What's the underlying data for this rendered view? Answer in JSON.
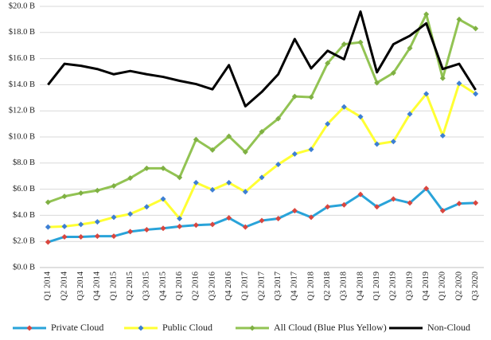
{
  "chart_data": {
    "type": "line",
    "categories": [
      "Q1 2014",
      "Q2 2014",
      "Q3 2014",
      "Q4 2014",
      "Q1 2015",
      "Q2 2015",
      "Q3 2015",
      "Q4 2015",
      "Q1 2016",
      "Q2 2016",
      "Q3 2016",
      "Q4 2016",
      "Q1 2017",
      "Q2 2017",
      "Q3 2017",
      "Q4 2017",
      "Q1 2018",
      "Q2 2018",
      "Q3 2018",
      "Q4 2018",
      "Q1 2019",
      "Q2 2019",
      "Q3 2019",
      "Q4 2019",
      "Q1 2020",
      "Q2 2020",
      "Q3 2020"
    ],
    "series": [
      {
        "name": "Private Cloud",
        "color": "#29a3d9",
        "marker_color": "#d9463f",
        "marker": true,
        "values": [
          1.95,
          2.35,
          2.35,
          2.4,
          2.4,
          2.75,
          2.9,
          3.0,
          3.15,
          3.25,
          3.3,
          3.8,
          3.1,
          3.6,
          3.75,
          4.35,
          3.85,
          4.65,
          4.8,
          5.6,
          4.65,
          5.25,
          4.95,
          6.05,
          4.35,
          4.9,
          4.95
        ]
      },
      {
        "name": "Public Cloud",
        "color": "#ffff33",
        "marker_color": "#3d7fd4",
        "marker": true,
        "values": [
          3.1,
          3.15,
          3.3,
          3.5,
          3.85,
          4.1,
          4.65,
          5.25,
          3.75,
          6.5,
          5.95,
          6.5,
          5.8,
          6.9,
          7.9,
          8.7,
          9.05,
          11.0,
          12.3,
          11.55,
          9.45,
          9.65,
          11.75,
          13.3,
          10.1,
          14.1,
          13.3
        ]
      },
      {
        "name": "All Cloud (Blue Plus Yellow)",
        "color": "#92c353",
        "marker_color": "#7fb043",
        "marker": true,
        "values": [
          5.0,
          5.45,
          5.7,
          5.9,
          6.25,
          6.85,
          7.6,
          7.6,
          6.9,
          9.8,
          9.0,
          10.05,
          8.85,
          10.4,
          11.4,
          13.1,
          13.05,
          15.65,
          17.1,
          17.25,
          14.15,
          14.9,
          16.8,
          19.4,
          14.5,
          19.0,
          18.3
        ]
      },
      {
        "name": "Non-Cloud",
        "color": "#000000",
        "marker": false,
        "values": [
          14.0,
          15.6,
          15.45,
          15.2,
          14.8,
          15.05,
          14.8,
          14.6,
          14.3,
          14.05,
          13.65,
          15.5,
          12.35,
          13.45,
          14.8,
          17.5,
          15.25,
          16.6,
          15.95,
          19.6,
          14.95,
          17.1,
          17.75,
          18.7,
          15.2,
          15.6,
          13.6
        ]
      }
    ],
    "ylim": [
      0,
      20
    ],
    "yticks": [
      {
        "value": 0,
        "label": "$0.0 B"
      },
      {
        "value": 2,
        "label": "$2.0 B"
      },
      {
        "value": 4,
        "label": "$4.0 B"
      },
      {
        "value": 6,
        "label": "$6.0 B"
      },
      {
        "value": 8,
        "label": "$8.0 B"
      },
      {
        "value": 10,
        "label": "$10.0 B"
      },
      {
        "value": 12,
        "label": "$12.0 B"
      },
      {
        "value": 14,
        "label": "$14.0 B"
      },
      {
        "value": 16,
        "label": "$16.0 B"
      },
      {
        "value": 18,
        "label": "$18.0 B"
      },
      {
        "value": 20,
        "label": "$20.0 B"
      }
    ],
    "grid": true,
    "legend": "bottom"
  }
}
